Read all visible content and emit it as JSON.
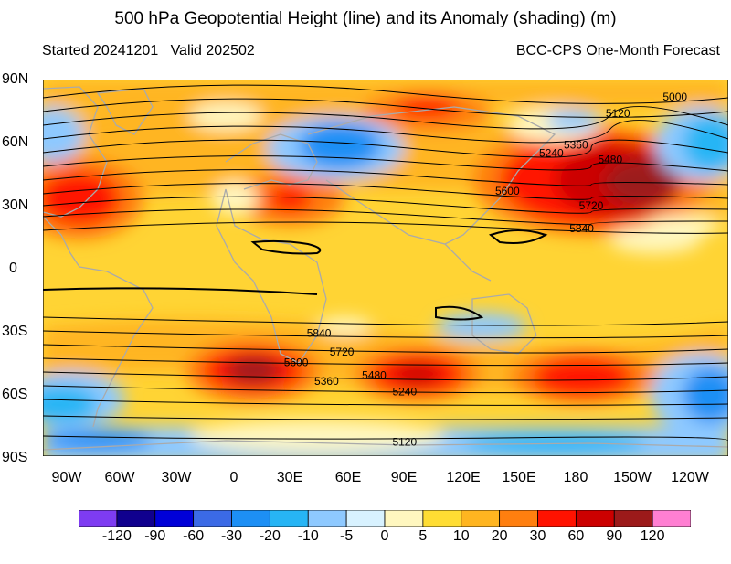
{
  "header": {
    "title": "500 hPa Geopotential Height (line) and its Anomaly (shading) (m)",
    "started": "Started 20241201",
    "valid": "Valid 202502",
    "source": "BCC-CPS One-Month Forecast"
  },
  "axes": {
    "lat_labels": [
      "90N",
      "60N",
      "30N",
      "0",
      "30S",
      "60S",
      "90S"
    ],
    "lon_labels": [
      "90W",
      "60W",
      "30W",
      "0",
      "30E",
      "60E",
      "90E",
      "120E",
      "150E",
      "180",
      "150W",
      "120W"
    ]
  },
  "contour_labels": [
    {
      "text": "5000",
      "lon": 228,
      "lat": 80
    },
    {
      "text": "5120",
      "lon": 198,
      "lat": 72
    },
    {
      "text": "5240",
      "lon": 163,
      "lat": 53
    },
    {
      "text": "5360",
      "lon": 176,
      "lat": 57
    },
    {
      "text": "5480",
      "lon": 194,
      "lat": 50
    },
    {
      "text": "5600",
      "lon": 140,
      "lat": 35
    },
    {
      "text": "5720",
      "lon": 184,
      "lat": 28
    },
    {
      "text": "5840",
      "lon": 179,
      "lat": 17
    },
    {
      "text": "5840",
      "lon": 41,
      "lat": -33
    },
    {
      "text": "5720",
      "lon": 53,
      "lat": -42
    },
    {
      "text": "5600",
      "lon": 29,
      "lat": -47
    },
    {
      "text": "5480",
      "lon": 70,
      "lat": -53
    },
    {
      "text": "5360",
      "lon": 45,
      "lat": -56
    },
    {
      "text": "5240",
      "lon": 86,
      "lat": -61
    },
    {
      "text": "5120",
      "lon": 86,
      "lat": -85
    }
  ],
  "colorbar": {
    "labels": [
      "-120",
      "-90",
      "-60",
      "-30",
      "-20",
      "-10",
      "-5",
      "0",
      "5",
      "10",
      "20",
      "30",
      "60",
      "90",
      "120"
    ],
    "colors": [
      "#7e3cf2",
      "#10008e",
      "#0000d8",
      "#3b6ae6",
      "#1d8ff5",
      "#27b5f5",
      "#8ec9ff",
      "#d8f2ff",
      "#fff7bf",
      "#ffdd33",
      "#ffb520",
      "#ff7f0f",
      "#ff1200",
      "#cc0000",
      "#9c1a1a",
      "#ff7fd2"
    ]
  },
  "colors": {
    "base": "#ffd434",
    "land_outline": "#aaaaaa",
    "contour": "#000000"
  }
}
